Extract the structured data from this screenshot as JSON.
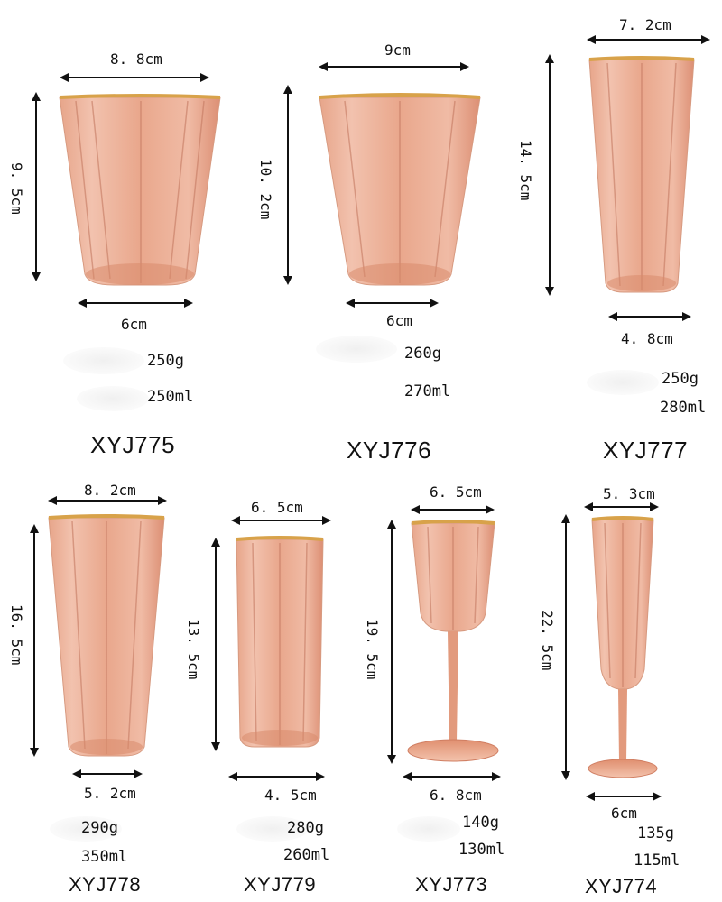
{
  "products": [
    {
      "model": "XYJ775",
      "top": "8. 8cm",
      "height": "9. 5cm",
      "bottom": "6cm",
      "weight": "250g",
      "volume": "250ml"
    },
    {
      "model": "XYJ776",
      "top": "9cm",
      "height": "10. 2cm",
      "bottom": "6cm",
      "weight": "260g",
      "volume": "270ml"
    },
    {
      "model": "XYJ777",
      "top": "7. 2cm",
      "height": "14. 5cm",
      "bottom": "4. 8cm",
      "weight": "250g",
      "volume": "280ml"
    },
    {
      "model": "XYJ778",
      "top": "8. 2cm",
      "height": "16. 5cm",
      "bottom": "5. 2cm",
      "weight": "290g",
      "volume": "350ml"
    },
    {
      "model": "XYJ779",
      "top": "6. 5cm",
      "height": "13. 5cm",
      "bottom": "4. 5cm",
      "weight": "280g",
      "volume": "260ml"
    },
    {
      "model": "XYJ773",
      "top": "6. 5cm",
      "height": "19. 5cm",
      "bottom": "6. 8cm",
      "weight": "140g",
      "volume": "130ml"
    },
    {
      "model": "XYJ774",
      "top": "5. 3cm",
      "height": "22. 5cm",
      "bottom": "6cm",
      "weight": "135g",
      "volume": "115ml"
    }
  ],
  "colors": {
    "glass": "#e9a287",
    "glass_dark": "#c8705a",
    "rim": "#d8a24a",
    "line": "#111111"
  }
}
